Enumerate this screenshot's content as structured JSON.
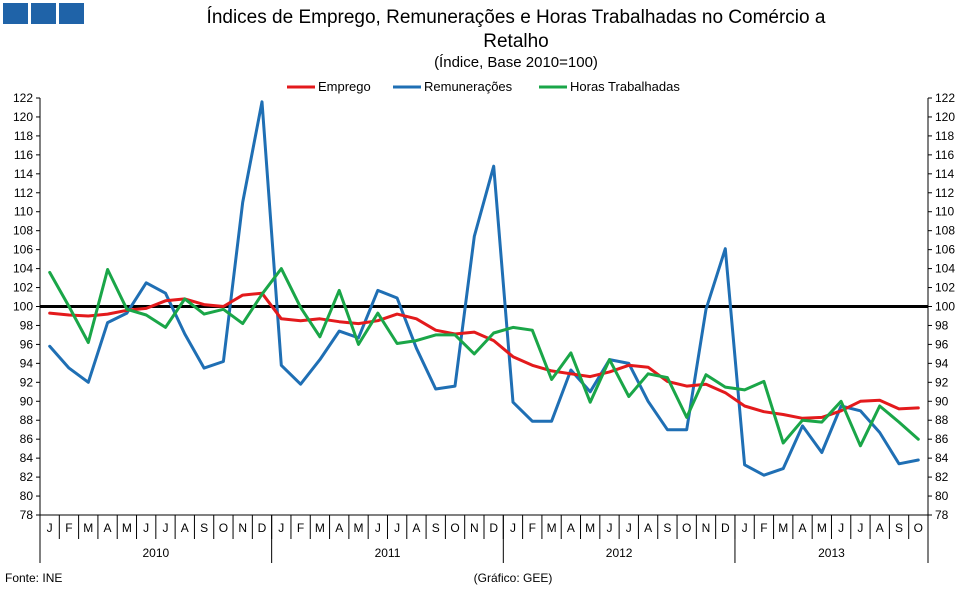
{
  "logo": {
    "squares": 3,
    "color": "#1f63a8"
  },
  "chart_data": {
    "type": "line",
    "title_line1": "Índices de Emprego,  Remunerações  e Horas Trabalhadas  no Comércio a",
    "title_line2": "Retalho",
    "subtitle": "(Índice, Base 2010=100)",
    "ylim": [
      78,
      122
    ],
    "yticks": [
      78,
      80,
      82,
      84,
      86,
      88,
      90,
      92,
      94,
      96,
      98,
      100,
      102,
      104,
      106,
      108,
      110,
      112,
      114,
      116,
      118,
      120,
      122
    ],
    "reference_line": 100,
    "reference_color": "#000000",
    "months": [
      "J",
      "F",
      "M",
      "A",
      "M",
      "J",
      "J",
      "A",
      "S",
      "O",
      "N",
      "D",
      "J",
      "F",
      "M",
      "A",
      "M",
      "J",
      "J",
      "A",
      "S",
      "O",
      "N",
      "D",
      "J",
      "F",
      "M",
      "A",
      "M",
      "J",
      "J",
      "A",
      "S",
      "O",
      "N",
      "D",
      "J",
      "F",
      "M",
      "A",
      "M",
      "J",
      "J",
      "A",
      "S",
      "O"
    ],
    "years": [
      {
        "label": "2010",
        "start": 0,
        "count": 12
      },
      {
        "label": "2011",
        "start": 12,
        "count": 12
      },
      {
        "label": "2012",
        "start": 24,
        "count": 12
      },
      {
        "label": "2013",
        "start": 36,
        "count": 10
      }
    ],
    "series": [
      {
        "name": "Emprego",
        "color": "#e31a1c",
        "values": [
          99.3,
          99.1,
          99.0,
          99.2,
          99.6,
          99.8,
          100.6,
          100.8,
          100.2,
          100.0,
          101.2,
          101.4,
          98.7,
          98.5,
          98.7,
          98.4,
          98.2,
          98.5,
          99.2,
          98.7,
          97.5,
          97.1,
          97.3,
          96.4,
          94.7,
          93.8,
          93.2,
          92.9,
          92.6,
          93.1,
          93.8,
          93.6,
          92.1,
          91.6,
          91.8,
          90.9,
          89.5,
          88.9,
          88.6,
          88.2,
          88.3,
          89.0,
          90.0,
          90.1,
          89.2,
          89.3
        ]
      },
      {
        "name": "Remunerações",
        "color": "#1f6fb4",
        "values": [
          95.8,
          93.5,
          92.0,
          98.3,
          99.3,
          102.5,
          101.4,
          97.1,
          93.5,
          94.2,
          111.0,
          121.6,
          93.8,
          91.8,
          94.4,
          97.4,
          96.7,
          101.7,
          100.9,
          95.6,
          91.3,
          91.6,
          107.4,
          114.8,
          89.9,
          87.9,
          87.9,
          93.3,
          91.0,
          94.4,
          94.0,
          90.0,
          87.0,
          87.0,
          99.7,
          106.1,
          83.3,
          82.2,
          82.9,
          87.4,
          84.6,
          89.5,
          89.0,
          86.7,
          83.4,
          83.8
        ]
      },
      {
        "name": "Horas Trabalhadas",
        "color": "#1aa648",
        "values": [
          103.6,
          100.0,
          96.2,
          103.9,
          99.7,
          99.1,
          97.8,
          100.8,
          99.2,
          99.7,
          98.2,
          101.3,
          104.0,
          99.9,
          96.8,
          101.7,
          96.0,
          99.3,
          96.1,
          96.4,
          97.0,
          97.0,
          95.0,
          97.2,
          97.8,
          97.5,
          92.3,
          95.1,
          89.9,
          94.4,
          90.5,
          92.9,
          92.5,
          88.3,
          92.8,
          91.5,
          91.2,
          92.1,
          85.6,
          88.0,
          87.8,
          90.0,
          85.3,
          89.5,
          87.8,
          86.0
        ]
      }
    ]
  },
  "footer": {
    "source": "Fonte: INE",
    "credit": "(Gráfico: GEE)"
  }
}
